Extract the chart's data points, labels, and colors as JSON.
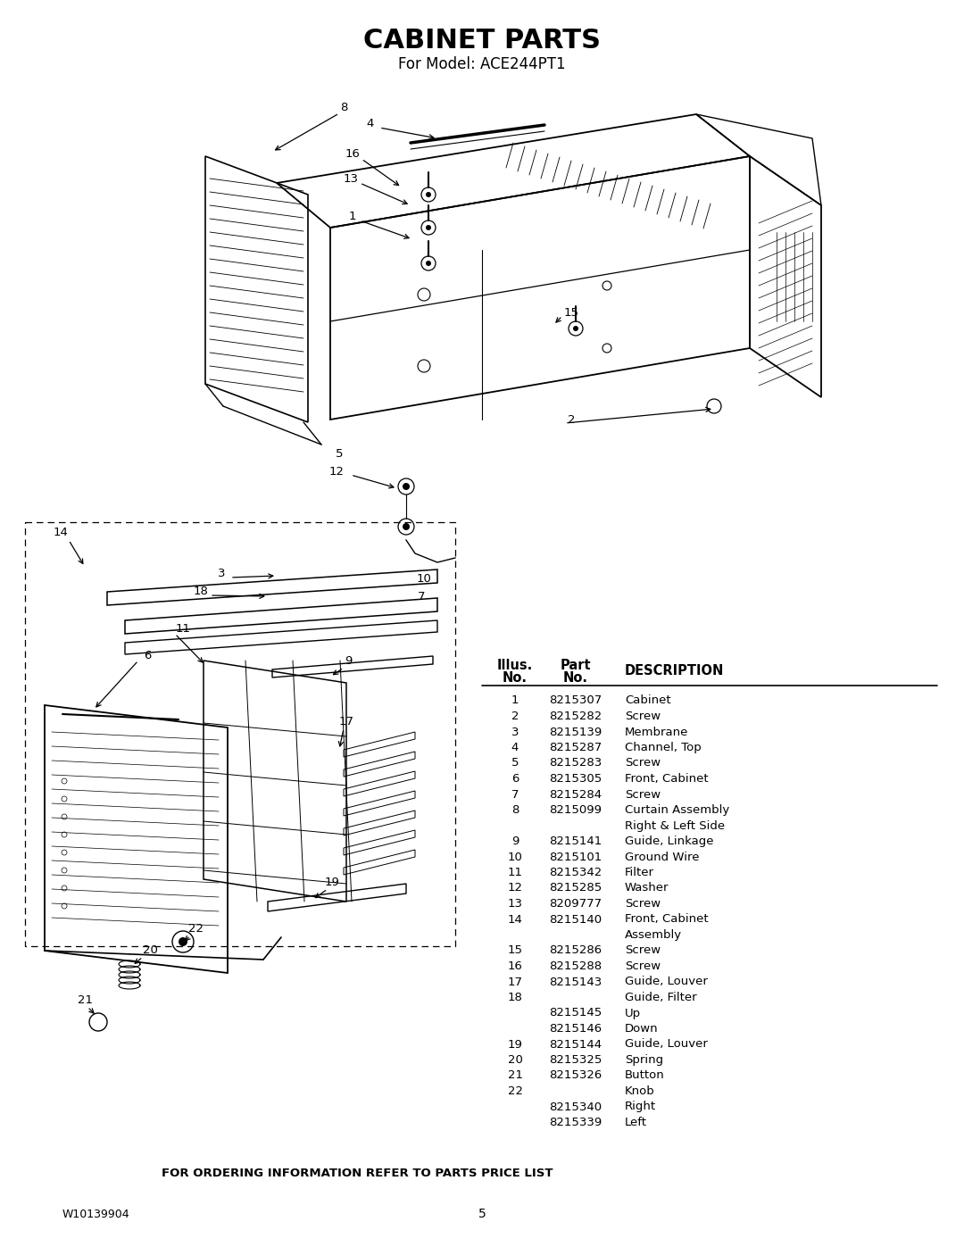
{
  "title": "CABINET PARTS",
  "subtitle": "For Model: ACE244PT1",
  "footer_left": "W10139904",
  "footer_center": "5",
  "footer_note": "FOR ORDERING INFORMATION REFER TO PARTS PRICE LIST",
  "bg_color": "#ffffff",
  "title_fontsize": 20,
  "subtitle_fontsize": 11,
  "table_rows": [
    [
      "1",
      "8215307",
      "Cabinet"
    ],
    [
      "2",
      "8215282",
      "Screw"
    ],
    [
      "3",
      "8215139",
      "Membrane"
    ],
    [
      "4",
      "8215287",
      "Channel, Top"
    ],
    [
      "5",
      "8215283",
      "Screw"
    ],
    [
      "6",
      "8215305",
      "Front, Cabinet"
    ],
    [
      "7",
      "8215284",
      "Screw"
    ],
    [
      "8",
      "8215099",
      "Curtain Assembly"
    ],
    [
      "",
      "",
      "Right & Left Side"
    ],
    [
      "9",
      "8215141",
      "Guide, Linkage"
    ],
    [
      "10",
      "8215101",
      "Ground Wire"
    ],
    [
      "11",
      "8215342",
      "Filter"
    ],
    [
      "12",
      "8215285",
      "Washer"
    ],
    [
      "13",
      "8209777",
      "Screw"
    ],
    [
      "14",
      "8215140",
      "Front, Cabinet"
    ],
    [
      "",
      "",
      "Assembly"
    ],
    [
      "15",
      "8215286",
      "Screw"
    ],
    [
      "16",
      "8215288",
      "Screw"
    ],
    [
      "17",
      "8215143",
      "Guide, Louver"
    ],
    [
      "18",
      "",
      "Guide, Filter"
    ],
    [
      "",
      "8215145",
      "Up"
    ],
    [
      "",
      "8215146",
      "Down"
    ],
    [
      "19",
      "8215144",
      "Guide, Louver"
    ],
    [
      "20",
      "8215325",
      "Spring"
    ],
    [
      "21",
      "8215326",
      "Button"
    ],
    [
      "22",
      "",
      "Knob"
    ],
    [
      "",
      "8215340",
      "Right"
    ],
    [
      "",
      "8215339",
      "Left"
    ]
  ]
}
